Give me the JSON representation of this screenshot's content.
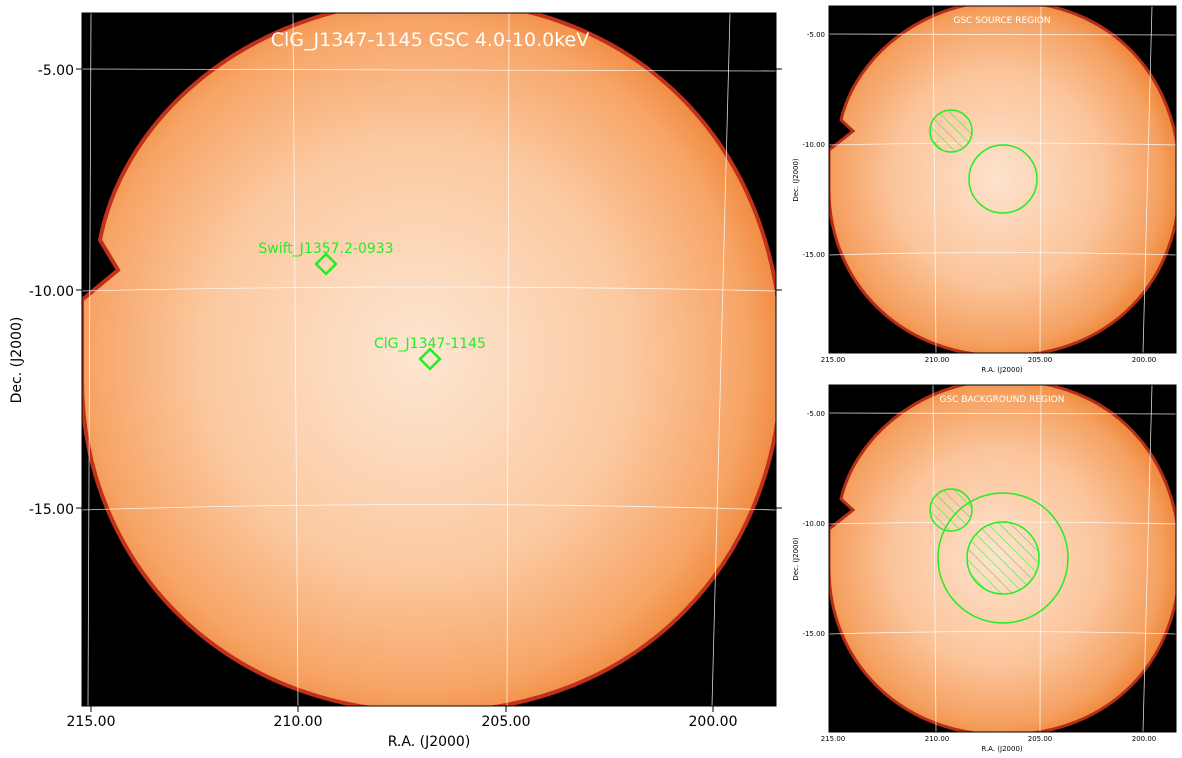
{
  "colors": {
    "background": "#ffffff",
    "sky": "#000000",
    "map_edge": "#c0301a",
    "map_mid": "#f39a55",
    "map_core": "#fde6d2",
    "marker": "#22ee22",
    "grid": "#ffffff"
  },
  "main_panel": {
    "title": "ClG_J1347-1145 GSC 4.0-10.0keV",
    "xlabel": "R.A. (J2000)",
    "ylabel": "Dec. (J2000)",
    "xticks": [
      "215.00",
      "210.00",
      "205.00",
      "200.00"
    ],
    "yticks": [
      "-5.00",
      "-10.00",
      "-15.00"
    ],
    "sources": [
      {
        "label": "Swift_J1357.2-0933",
        "marker": "diamond"
      },
      {
        "label": "ClG_J1347-1145",
        "marker": "diamond"
      }
    ]
  },
  "source_panel": {
    "title": "GSC SOURCE REGION",
    "xlabel": "R.A. (J2000)",
    "ylabel": "Dec. (J2000)",
    "xticks": [
      "215.00",
      "210.00",
      "205.00",
      "200.00"
    ],
    "yticks": [
      "-5.00",
      "-10.00",
      "-15.00"
    ],
    "regions": [
      "excluded-circle",
      "source-circle"
    ]
  },
  "background_panel": {
    "title": "GSC BACKGROUND REGION",
    "xlabel": "R.A. (J2000)",
    "ylabel": "Dec. (J2000)",
    "xticks": [
      "215.00",
      "210.00",
      "205.00",
      "200.00"
    ],
    "yticks": [
      "-5.00",
      "-10.00",
      "-15.00"
    ],
    "regions": [
      "excluded-circle",
      "background-annulus-outer",
      "excluded-source-circle"
    ]
  }
}
